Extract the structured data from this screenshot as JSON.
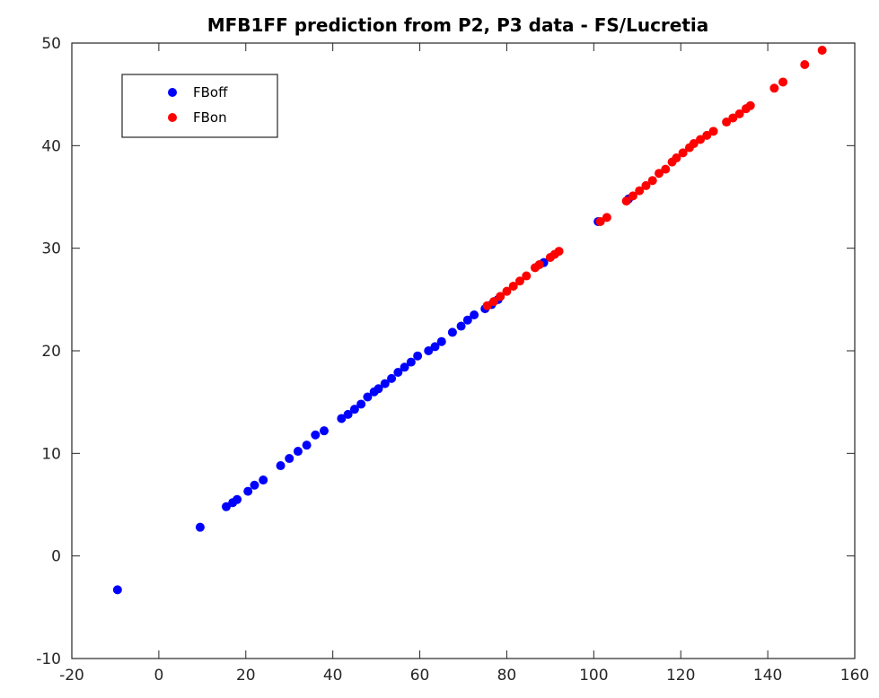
{
  "chart_data": {
    "type": "scatter",
    "title": "MFB1FF prediction from P2, P3 data - FS/Lucretia",
    "xlabel": "",
    "ylabel": "",
    "xlim": [
      -20,
      160
    ],
    "ylim": [
      -10,
      50
    ],
    "xticks": [
      "-20",
      "0",
      "20",
      "40",
      "60",
      "80",
      "100",
      "120",
      "140",
      "160"
    ],
    "yticks": [
      "-10",
      "0",
      "10",
      "20",
      "30",
      "40",
      "50"
    ],
    "grid": false,
    "legend_position": "top-left",
    "series": [
      {
        "name": "FBoff",
        "color": "#0000ff",
        "x": [
          -9.5,
          9.5,
          15.5,
          17.0,
          18.0,
          20.5,
          22.0,
          24.0,
          28.0,
          30.0,
          32.0,
          34.0,
          36.0,
          38.0,
          42.0,
          43.5,
          45.0,
          46.5,
          48.0,
          49.5,
          50.5,
          52.0,
          53.5,
          55.0,
          56.5,
          58.0,
          59.5,
          62.0,
          63.5,
          65.0,
          67.5,
          69.5,
          71.0,
          72.5,
          75.0,
          76.5,
          78.0,
          88.5,
          101.0,
          108.0
        ],
        "y": [
          -3.3,
          2.8,
          4.8,
          5.2,
          5.5,
          6.3,
          6.9,
          7.4,
          8.8,
          9.5,
          10.2,
          10.8,
          11.8,
          12.2,
          13.4,
          13.8,
          14.3,
          14.8,
          15.5,
          16.0,
          16.3,
          16.8,
          17.3,
          17.9,
          18.4,
          18.9,
          19.5,
          20.0,
          20.4,
          20.9,
          21.8,
          22.4,
          23.0,
          23.5,
          24.1,
          24.5,
          25.0,
          28.6,
          32.6,
          34.8
        ]
      },
      {
        "name": "FBon",
        "color": "#ff0000",
        "x": [
          75.5,
          77.0,
          78.5,
          80.0,
          81.5,
          83.0,
          84.5,
          86.5,
          87.5,
          90.0,
          91.0,
          92.0,
          101.5,
          103.0,
          107.5,
          109.0,
          110.5,
          112.0,
          113.5,
          115.0,
          116.5,
          118.0,
          119.0,
          120.5,
          122.0,
          123.0,
          124.5,
          126.0,
          127.5,
          130.5,
          132.0,
          133.5,
          135.0,
          136.0,
          141.5,
          143.5,
          148.5,
          152.5
        ],
        "y": [
          24.4,
          24.8,
          25.3,
          25.8,
          26.3,
          26.8,
          27.3,
          28.1,
          28.4,
          29.1,
          29.4,
          29.7,
          32.6,
          33.0,
          34.6,
          35.1,
          35.6,
          36.1,
          36.6,
          37.3,
          37.7,
          38.4,
          38.8,
          39.3,
          39.8,
          40.2,
          40.6,
          41.0,
          41.4,
          42.3,
          42.7,
          43.1,
          43.6,
          43.9,
          45.6,
          46.2,
          47.9,
          49.3
        ]
      }
    ]
  }
}
